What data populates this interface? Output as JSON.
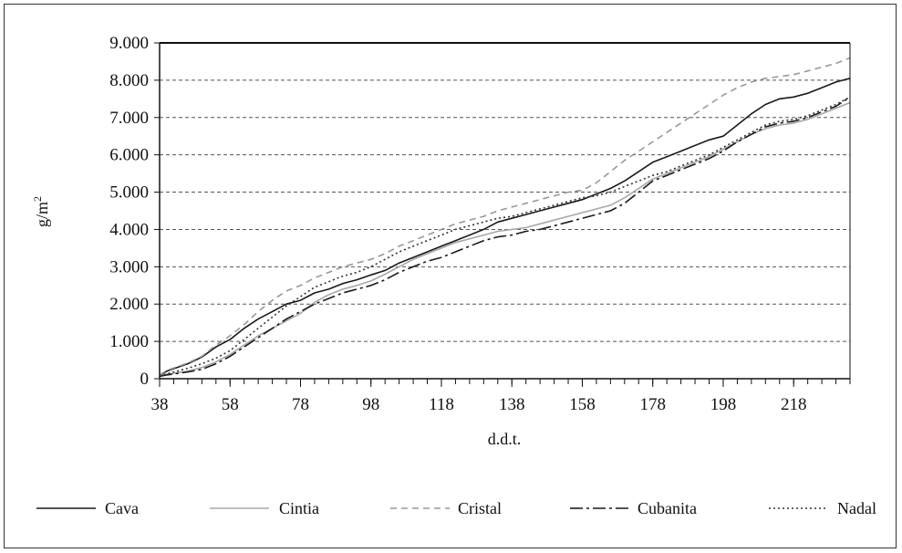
{
  "chart_data": {
    "type": "line",
    "xlabel": "d.d.t.",
    "ylabel": "g/m",
    "ylabel_sup": "2",
    "xlim": [
      38,
      234
    ],
    "ylim": [
      0,
      9000
    ],
    "x_ticks": [
      38,
      58,
      78,
      98,
      118,
      138,
      158,
      178,
      198,
      218
    ],
    "y_ticks": [
      0,
      1000,
      2000,
      3000,
      4000,
      5000,
      6000,
      7000,
      8000,
      9000
    ],
    "y_tick_labels": [
      "0",
      "1.000",
      "2.000",
      "3.000",
      "4.000",
      "5.000",
      "6.000",
      "7.000",
      "8.000",
      "9.000"
    ],
    "grid": "horizontal dashed",
    "legend_position": "bottom",
    "x": [
      38,
      40,
      46,
      50,
      54,
      58,
      62,
      66,
      70,
      74,
      78,
      82,
      86,
      90,
      94,
      98,
      102,
      106,
      110,
      114,
      118,
      122,
      126,
      130,
      134,
      138,
      142,
      146,
      150,
      154,
      158,
      162,
      166,
      170,
      174,
      178,
      182,
      186,
      190,
      194,
      198,
      202,
      206,
      210,
      214,
      218,
      222,
      226,
      230,
      234
    ],
    "series": [
      {
        "name": "Cava",
        "color": "#1a1a1a",
        "dash": "",
        "values": [
          80,
          200,
          400,
          580,
          850,
          1050,
          1350,
          1600,
          1800,
          2000,
          2100,
          2300,
          2400,
          2550,
          2650,
          2780,
          2900,
          3100,
          3250,
          3400,
          3550,
          3700,
          3850,
          4000,
          4200,
          4300,
          4400,
          4500,
          4600,
          4700,
          4800,
          4950,
          5100,
          5300,
          5550,
          5800,
          5950,
          6100,
          6250,
          6400,
          6500,
          6800,
          7100,
          7350,
          7500,
          7550,
          7650,
          7800,
          7950,
          8050
        ]
      },
      {
        "name": "Cintia",
        "color": "#a8a8a8",
        "dash": "",
        "values": [
          70,
          120,
          200,
          300,
          450,
          650,
          900,
          1150,
          1350,
          1550,
          1750,
          2050,
          2250,
          2400,
          2500,
          2620,
          2800,
          3000,
          3200,
          3350,
          3500,
          3650,
          3750,
          3850,
          3950,
          4000,
          4050,
          4150,
          4250,
          4350,
          4450,
          4550,
          4650,
          4850,
          5100,
          5350,
          5500,
          5650,
          5800,
          5950,
          6150,
          6350,
          6550,
          6700,
          6800,
          6850,
          6950,
          7100,
          7250,
          7400
        ]
      },
      {
        "name": "Cristal",
        "color": "#999999",
        "dash": "7,5",
        "values": [
          100,
          220,
          420,
          600,
          900,
          1150,
          1450,
          1800,
          2100,
          2350,
          2500,
          2700,
          2850,
          3000,
          3100,
          3200,
          3350,
          3550,
          3700,
          3850,
          4000,
          4150,
          4250,
          4350,
          4500,
          4600,
          4700,
          4800,
          4900,
          5000,
          5050,
          5250,
          5550,
          5850,
          6100,
          6350,
          6600,
          6850,
          7100,
          7350,
          7600,
          7800,
          7950,
          8050,
          8100,
          8150,
          8250,
          8350,
          8450,
          8600
        ]
      },
      {
        "name": "Cubanita",
        "color": "#1a1a1a",
        "dash": "14,4,3,4",
        "values": [
          60,
          100,
          180,
          250,
          400,
          600,
          850,
          1100,
          1350,
          1600,
          1800,
          2000,
          2150,
          2300,
          2400,
          2500,
          2650,
          2850,
          3000,
          3150,
          3250,
          3400,
          3550,
          3700,
          3800,
          3850,
          3950,
          4000,
          4100,
          4200,
          4300,
          4400,
          4500,
          4700,
          5000,
          5300,
          5450,
          5600,
          5750,
          5900,
          6100,
          6350,
          6550,
          6750,
          6850,
          6900,
          7000,
          7150,
          7300,
          7550
        ]
      },
      {
        "name": "Nadal",
        "color": "#333333",
        "dash": "2,3",
        "values": [
          60,
          130,
          280,
          400,
          550,
          750,
          1050,
          1350,
          1650,
          1950,
          2200,
          2450,
          2600,
          2750,
          2850,
          3000,
          3200,
          3400,
          3550,
          3700,
          3850,
          4000,
          4100,
          4200,
          4300,
          4350,
          4450,
          4550,
          4650,
          4750,
          4850,
          4900,
          5000,
          5150,
          5300,
          5450,
          5550,
          5700,
          5850,
          6000,
          6200,
          6400,
          6600,
          6800,
          6900,
          6950,
          7050,
          7200,
          7350,
          7550
        ]
      }
    ]
  }
}
